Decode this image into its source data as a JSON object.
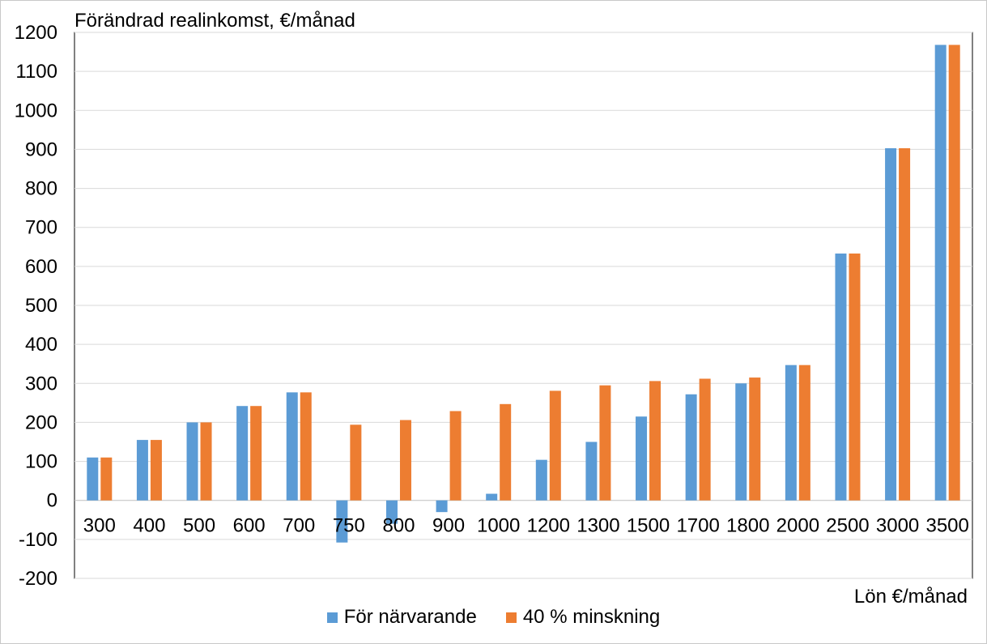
{
  "chart_data": {
    "type": "bar",
    "title": "",
    "ylabel": "Förändrad realinkomst, €/månad",
    "xlabel": "Lön €/månad",
    "ylim": [
      -200,
      1200
    ],
    "ytick_step": 100,
    "grid": true,
    "legend_position": "bottom",
    "categories": [
      "300",
      "400",
      "500",
      "600",
      "700",
      "750",
      "800",
      "900",
      "1000",
      "1200",
      "1300",
      "1500",
      "1700",
      "1800",
      "2000",
      "2500",
      "3000",
      "3500"
    ],
    "series": [
      {
        "name": "För närvarande",
        "color": "#5B9BD5",
        "values": [
          110,
          155,
          200,
          242,
          277,
          -108,
          -60,
          -30,
          17,
          104,
          150,
          215,
          272,
          300,
          347,
          633,
          903,
          1168
        ]
      },
      {
        "name": "40 % minskning",
        "color": "#ED7D31",
        "values": [
          110,
          155,
          200,
          242,
          277,
          194,
          206,
          229,
          247,
          281,
          295,
          306,
          312,
          315,
          347,
          633,
          903,
          1168
        ]
      }
    ]
  }
}
